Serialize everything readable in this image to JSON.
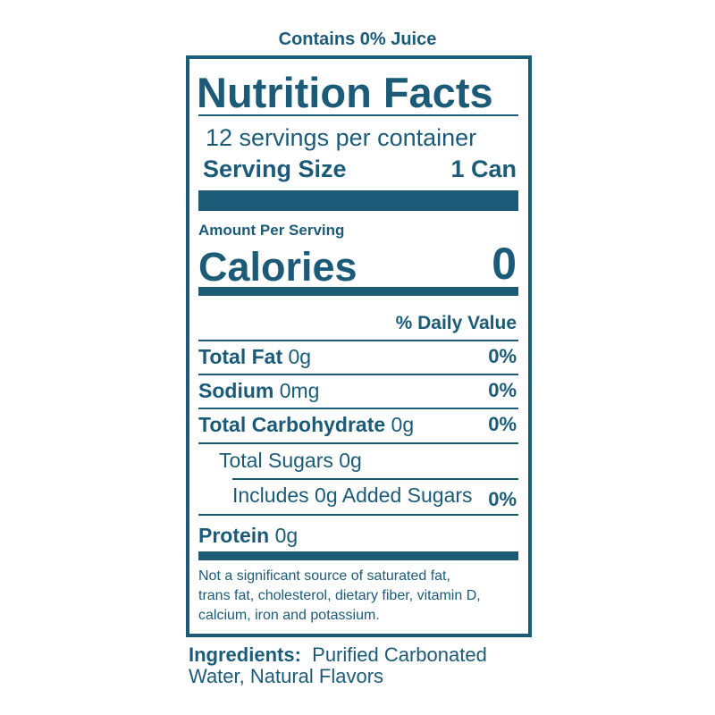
{
  "header": {
    "note": "Contains 0% Juice"
  },
  "label": {
    "title": "Nutrition Facts",
    "servings": "12 servings per container",
    "serving_size_label": "Serving Size",
    "serving_size_value": "1 Can",
    "amount_per_serving": "Amount Per Serving",
    "calories_label": "Calories",
    "calories_value": "0",
    "daily_value_header": "% Daily Value",
    "rows": [
      {
        "name": "Total Fat",
        "amount": "0g",
        "dv": "0%"
      },
      {
        "name": "Sodium",
        "amount": "0mg",
        "dv": "0%"
      },
      {
        "name": "Total Carbohydrate",
        "amount": "0g",
        "dv": "0%"
      },
      {
        "text": "Total Sugars 0g"
      },
      {
        "text": "Includes 0g Added Sugars",
        "dv": "0%"
      },
      {
        "name": "Protein",
        "amount": "0g"
      }
    ],
    "footnote": [
      "Not a significant source of saturated fat,",
      "trans fat, cholesterol, dietary fiber, vitamin D,",
      "calcium, iron and potassium."
    ]
  },
  "ingredients": {
    "label": "Ingredients:",
    "lines": [
      "Purified Carbonated",
      "Water, Natural Flavors"
    ]
  }
}
